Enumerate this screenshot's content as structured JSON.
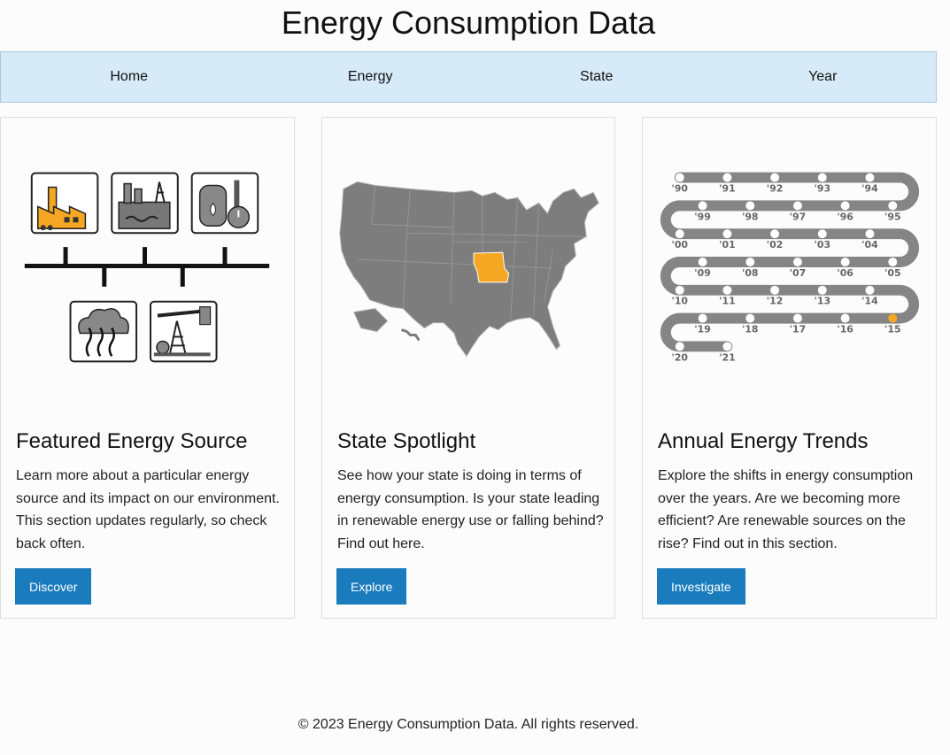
{
  "page": {
    "title": "Energy Consumption Data"
  },
  "nav": {
    "items": [
      {
        "label": "Home"
      },
      {
        "label": "Energy"
      },
      {
        "label": "State"
      },
      {
        "label": "Year"
      }
    ]
  },
  "cards": [
    {
      "title": "Featured Energy Source",
      "text": "Learn more about a particular energy source and its impact on our environment. This section updates regularly, so check back often.",
      "button": "Discover",
      "illustration": "energy-sources-icons"
    },
    {
      "title": "State Spotlight",
      "text": "See how your state is doing in terms of energy consumption. Is your state leading in renewable energy use or falling behind? Find out here.",
      "button": "Explore",
      "illustration": "us-map",
      "highlight_color": "#f5a623"
    },
    {
      "title": "Annual Energy Trends",
      "text": "Explore the shifts in energy consumption over the years. Are we becoming more efficient? Are renewable sources on the rise? Find out in this section.",
      "button": "Investigate",
      "illustration": "timeline",
      "timeline_labels": [
        "'90",
        "'91",
        "'92",
        "'93",
        "'94",
        "'99",
        "'98",
        "'97",
        "'96",
        "'95",
        "'00",
        "'01",
        "'02",
        "'03",
        "'04",
        "'09",
        "'08",
        "'07",
        "'06",
        "'05",
        "'10",
        "'11",
        "'12",
        "'13",
        "'14",
        "'19",
        "'18",
        "'17",
        "'16",
        "'15",
        "'20",
        "'21"
      ]
    }
  ],
  "footer": {
    "text": "© 2023 Energy Consumption Data. All rights reserved."
  },
  "colors": {
    "accent": "#1a7bbd",
    "nav_bg": "#d6eaf8",
    "highlight": "#f5a623",
    "gray": "#7a7a7a"
  }
}
